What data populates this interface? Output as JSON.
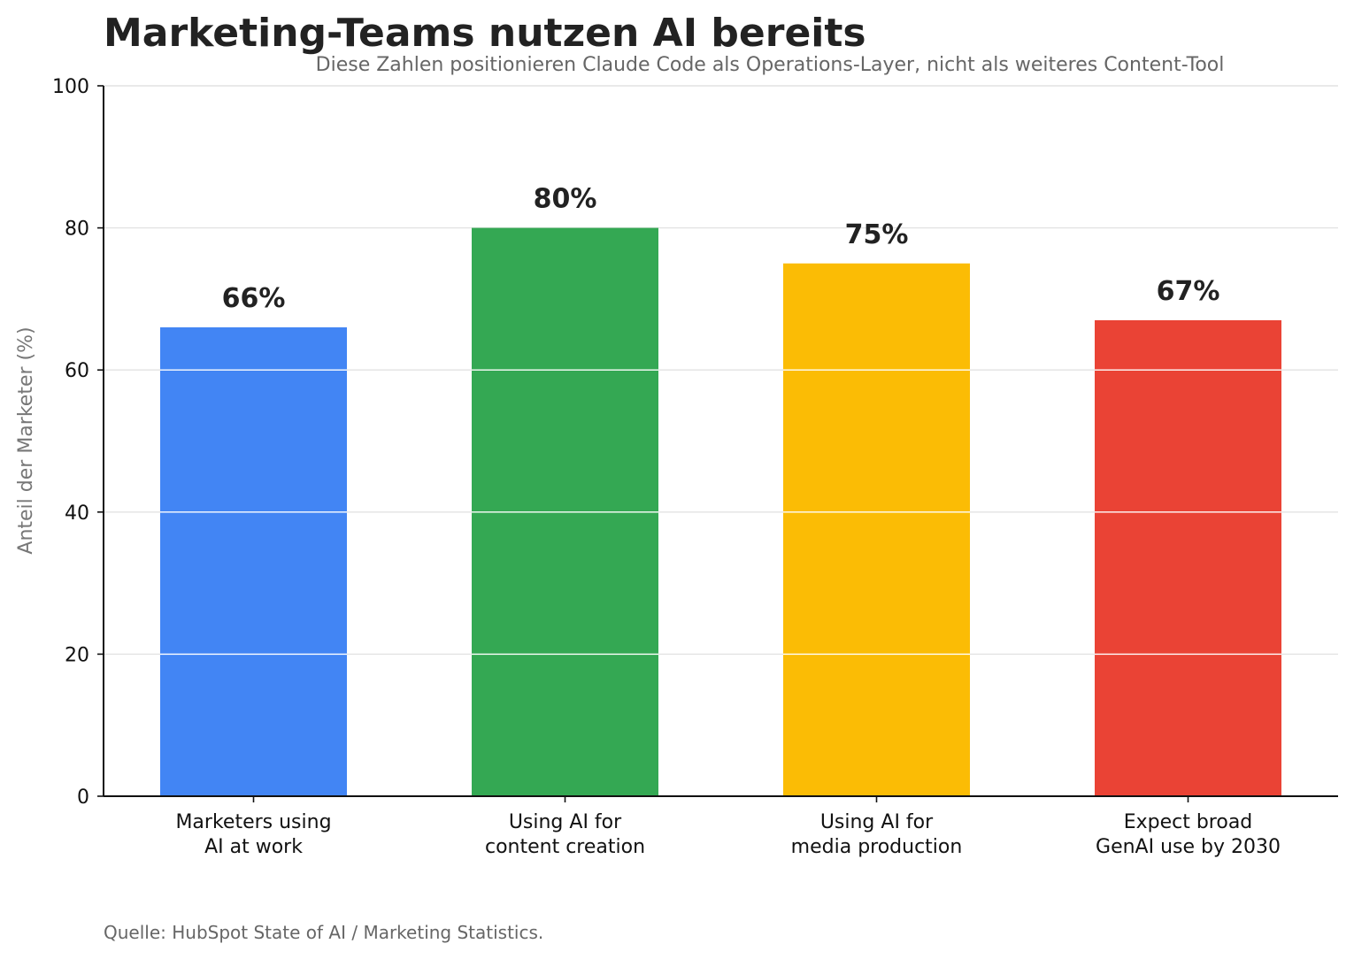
{
  "chart_data": {
    "type": "bar",
    "title": "Marketing-Teams nutzen AI bereits",
    "subtitle": "Diese Zahlen positionieren Claude Code als Operations-Layer, nicht als weiteres Content-Tool",
    "xlabel": "",
    "ylabel": "Anteil der Marketer (%)",
    "ylim": [
      0,
      100
    ],
    "yticks": [
      0,
      20,
      40,
      60,
      80,
      100
    ],
    "grid": true,
    "categories": [
      [
        "Marketers using",
        "AI at work"
      ],
      [
        "Using AI for",
        "content creation"
      ],
      [
        "Using AI for",
        "media production"
      ],
      [
        "Expect broad",
        "GenAI use by 2030"
      ]
    ],
    "values": [
      66,
      80,
      75,
      67
    ],
    "data_labels": [
      "66%",
      "80%",
      "75%",
      "67%"
    ],
    "colors": [
      "#4285F4",
      "#34A853",
      "#FBBC05",
      "#EA4335"
    ],
    "source": "Quelle: HubSpot State of AI / Marketing Statistics."
  }
}
